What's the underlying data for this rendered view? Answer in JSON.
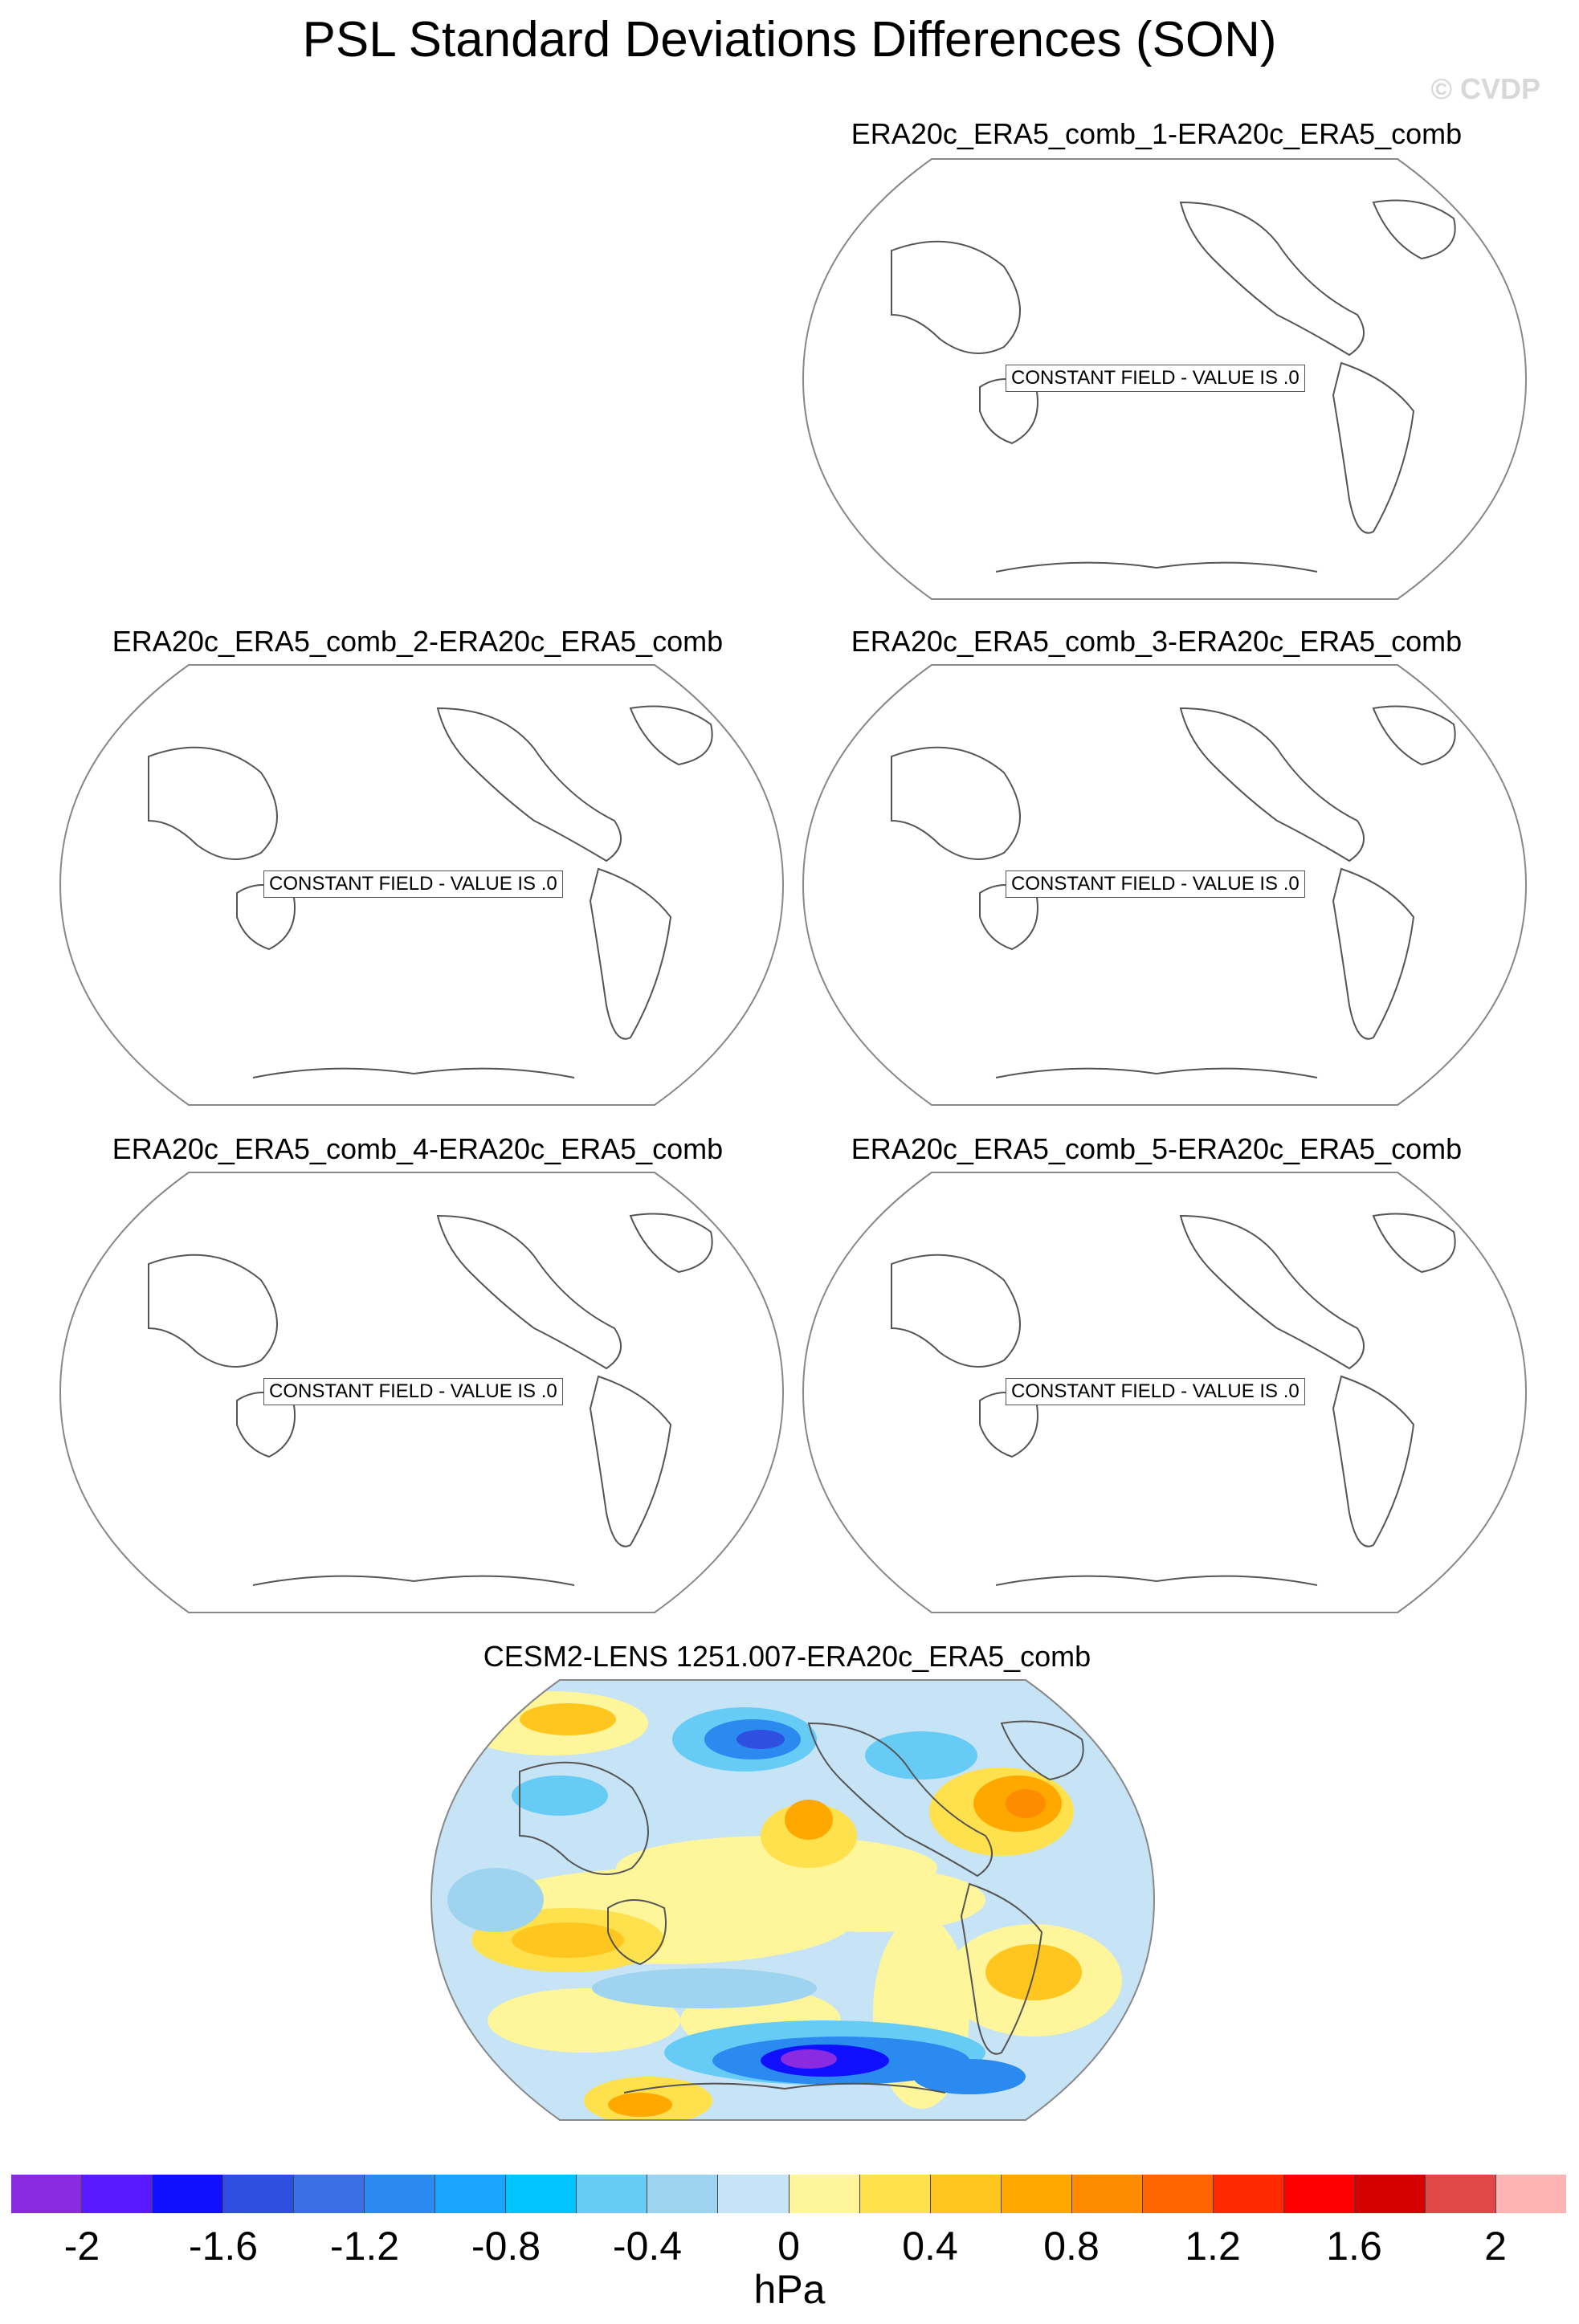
{
  "title": "PSL Standard Deviations Differences (SON)",
  "watermark": "© CVDP",
  "panels": [
    {
      "title": "ERA20c_ERA5_comb_1-ERA20c_ERA5_comb",
      "message": "CONSTANT FIELD - VALUE IS .0"
    },
    {
      "title": "ERA20c_ERA5_comb_2-ERA20c_ERA5_comb",
      "message": "CONSTANT FIELD - VALUE IS .0"
    },
    {
      "title": "ERA20c_ERA5_comb_3-ERA20c_ERA5_comb",
      "message": "CONSTANT FIELD - VALUE IS .0"
    },
    {
      "title": "ERA20c_ERA5_comb_4-ERA20c_ERA5_comb",
      "message": "CONSTANT FIELD - VALUE IS .0"
    },
    {
      "title": "ERA20c_ERA5_comb_5-ERA20c_ERA5_comb",
      "message": "CONSTANT FIELD - VALUE IS .0"
    },
    {
      "title": "CESM2-LENS 1251.007-ERA20c_ERA5_comb",
      "message": ""
    }
  ],
  "colorbar": {
    "colors": [
      "#8a2be2",
      "#5a1aff",
      "#1010ff",
      "#2f4fe0",
      "#3a6fe8",
      "#2a8af0",
      "#1aa6ff",
      "#00c4ff",
      "#66ccf5",
      "#9ed4f0",
      "#c6e4f6",
      "#fff59a",
      "#ffe04d",
      "#ffc61f",
      "#ffa800",
      "#ff8c00",
      "#ff6400",
      "#ff2a00",
      "#ff0000",
      "#d40000",
      "#e04848",
      "#ffb4b4"
    ],
    "labels": [
      "-2",
      "-1.6",
      "-1.2",
      "-0.8",
      "-0.4",
      "0",
      "0.4",
      "0.8",
      "1.2",
      "1.6",
      "2"
    ],
    "units": "hPa"
  }
}
